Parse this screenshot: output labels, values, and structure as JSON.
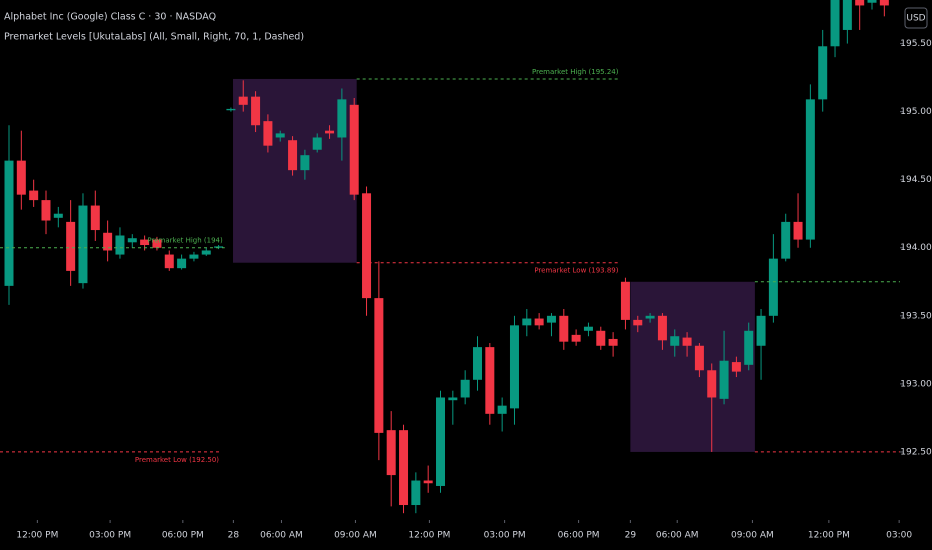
{
  "chart_data": {
    "type": "candlestick",
    "title": "Alphabet Inc (Google) Class C · 30 · NASDAQ",
    "subtitle": "Premarket Levels [UkutaLabs] (All, Small, Right, 70, 1, Dashed)",
    "currency": "USD",
    "up_color": "#089981",
    "down_color": "#f23645",
    "open": [
      193.72,
      194.64,
      194.42,
      194.35,
      194.22,
      194.19,
      193.74,
      194.31,
      194.11,
      193.95,
      194.04,
      194.06,
      194.06,
      193.95,
      193.85,
      193.92,
      193.95,
      194.0,
      195.01,
      195.11,
      195.11,
      194.93,
      194.81,
      194.79,
      194.57,
      194.72,
      194.86,
      194.81,
      195.05,
      194.4,
      193.63,
      192.66,
      192.66,
      192.11,
      192.29,
      192.25,
      192.88,
      192.9,
      193.03,
      193.27,
      192.78,
      192.82,
      193.43,
      193.48,
      193.45,
      193.5,
      193.36,
      193.39,
      193.39,
      193.33,
      193.75,
      193.47,
      193.48,
      193.5,
      193.28,
      193.34,
      193.28,
      193.1,
      192.89,
      193.16,
      193.14,
      193.28,
      193.5,
      193.92,
      194.19,
      194.06,
      195.09,
      195.48,
      195.6,
      195.85,
      195.8,
      195.85
    ],
    "high": [
      194.9,
      194.86,
      194.5,
      194.42,
      194.3,
      194.35,
      194.4,
      194.42,
      194.2,
      194.15,
      194.1,
      194.09,
      194.08,
      193.98,
      193.95,
      193.97,
      194.0,
      194.02,
      195.03,
      195.23,
      195.15,
      194.98,
      194.86,
      194.82,
      194.72,
      194.84,
      194.9,
      195.17,
      195.1,
      194.45,
      193.9,
      192.8,
      192.7,
      192.35,
      192.4,
      192.95,
      192.95,
      193.1,
      193.35,
      193.3,
      192.9,
      193.5,
      193.55,
      193.52,
      193.52,
      193.55,
      193.4,
      193.45,
      193.42,
      193.38,
      193.78,
      193.5,
      193.52,
      193.52,
      193.4,
      193.38,
      193.3,
      193.15,
      193.39,
      193.2,
      193.45,
      193.55,
      194.1,
      194.25,
      194.4,
      195.2,
      195.6,
      195.9,
      195.95,
      195.9,
      195.9,
      195.88
    ],
    "low": [
      193.58,
      194.28,
      194.3,
      194.1,
      194.15,
      193.72,
      193.7,
      194.05,
      193.9,
      193.92,
      194.0,
      193.98,
      193.98,
      193.83,
      193.84,
      193.9,
      193.94,
      193.99,
      195.0,
      195.0,
      194.85,
      194.7,
      194.78,
      194.53,
      194.5,
      194.7,
      194.8,
      194.64,
      194.35,
      193.5,
      192.44,
      192.1,
      192.05,
      192.05,
      192.2,
      192.2,
      192.7,
      192.85,
      192.95,
      192.7,
      192.65,
      192.7,
      193.35,
      193.4,
      193.35,
      193.25,
      193.28,
      193.35,
      193.25,
      193.2,
      193.4,
      193.38,
      193.45,
      193.25,
      193.2,
      193.2,
      193.05,
      192.5,
      192.85,
      193.05,
      193.1,
      193.03,
      193.45,
      193.9,
      194.0,
      194.0,
      195.0,
      195.4,
      195.5,
      195.6,
      195.75,
      195.7
    ],
    "close": [
      194.64,
      194.39,
      194.35,
      194.2,
      194.25,
      193.83,
      194.31,
      194.13,
      193.98,
      194.09,
      194.07,
      194.02,
      194.0,
      193.85,
      193.92,
      193.95,
      193.98,
      194.01,
      195.02,
      195.05,
      194.9,
      194.75,
      194.84,
      194.57,
      194.68,
      194.81,
      194.84,
      195.09,
      194.39,
      193.63,
      192.64,
      192.33,
      192.11,
      192.29,
      192.27,
      192.9,
      192.9,
      193.03,
      193.27,
      192.78,
      192.84,
      193.43,
      193.48,
      193.43,
      193.5,
      193.31,
      193.31,
      193.42,
      193.28,
      193.28,
      193.47,
      193.43,
      193.5,
      193.32,
      193.35,
      193.28,
      193.1,
      192.9,
      193.17,
      193.09,
      193.39,
      193.5,
      193.92,
      194.19,
      194.06,
      195.09,
      195.48,
      195.85,
      195.9,
      195.78,
      195.85,
      195.78
    ],
    "xlim": [
      -0.73,
      72.27
    ],
    "xticks": [
      {
        "value": 2.3,
        "label": "12:00 PM"
      },
      {
        "value": 8.2,
        "label": "03:00 PM"
      },
      {
        "value": 14.1,
        "label": "06:00 PM"
      },
      {
        "value": 18.2,
        "label": "28"
      },
      {
        "value": 22.1,
        "label": "06:00 AM"
      },
      {
        "value": 28.1,
        "label": "09:00 AM"
      },
      {
        "value": 34.1,
        "label": "12:00 PM"
      },
      {
        "value": 40.2,
        "label": "03:00 PM"
      },
      {
        "value": 46.2,
        "label": "06:00 PM"
      },
      {
        "value": 50.4,
        "label": "29"
      },
      {
        "value": 54.2,
        "label": "06:00 AM"
      },
      {
        "value": 60.3,
        "label": "09:00 AM"
      },
      {
        "value": 66.5,
        "label": "12:00 PM"
      },
      {
        "value": 72.2,
        "label": "03:00"
      }
    ],
    "ylim": [
      192.0,
      195.82
    ],
    "yticks": [
      {
        "value": 192.5,
        "label": "192.50"
      },
      {
        "value": 193,
        "label": "193.00"
      },
      {
        "value": 193.5,
        "label": "193.50"
      },
      {
        "value": 194,
        "label": "194.00"
      },
      {
        "value": 194.5,
        "label": "194.50"
      },
      {
        "value": 195,
        "label": "195.00"
      },
      {
        "value": 195.5,
        "label": "195.50"
      }
    ],
    "zones": [
      {
        "start": 18.17,
        "end": 28.2,
        "high": 195.24,
        "low": 193.89,
        "color": "#2a1538"
      },
      {
        "start": 50.4,
        "end": 60.5,
        "high": 193.75,
        "low": 192.5,
        "color": "#2a1538"
      }
    ],
    "levels": [
      {
        "label": "Premarket High (194)",
        "value": 194,
        "from": -0.73,
        "to": 17.5,
        "color": "#4caf50",
        "label_side": "above"
      },
      {
        "label": "Premarket Low (192.50)",
        "value": 192.5,
        "from": -0.73,
        "to": 17.2,
        "color": "#f23645",
        "label_side": "below"
      },
      {
        "label": "Premarket High (195.24)",
        "value": 195.24,
        "from": 28.2,
        "to": 49.6,
        "color": "#4caf50",
        "label_side": "above"
      },
      {
        "label": "Premarket Low (193.89)",
        "value": 193.89,
        "from": 28.2,
        "to": 49.6,
        "color": "#f23645",
        "label_side": "below"
      },
      {
        "value": 193.75,
        "from": 60.5,
        "to": 72.27,
        "color": "#4caf50"
      },
      {
        "value": 192.5,
        "from": 60.5,
        "to": 72.27,
        "color": "#f23645"
      }
    ]
  }
}
